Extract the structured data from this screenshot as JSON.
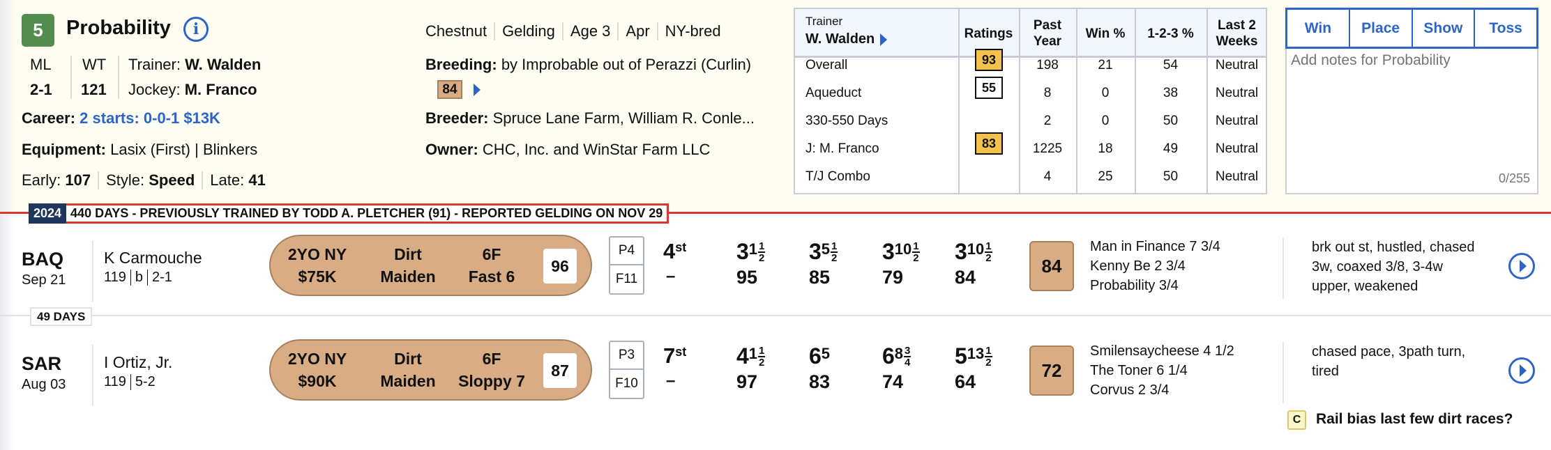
{
  "horse": {
    "number": "5",
    "name": "Probability",
    "ml_label": "ML",
    "ml": "2-1",
    "wt_label": "WT",
    "wt": "121",
    "trainer_label": "Trainer:",
    "trainer": "W. Walden",
    "jockey_label": "Jockey:",
    "jockey": "M. Franco",
    "career_label": "Career:",
    "career": "2 starts: 0-0-1 $13K",
    "equipment_label": "Equipment:",
    "equipment": "Lasix (First) | Blinkers",
    "early_label": "Early:",
    "early": "107",
    "style_label": "Style:",
    "style": "Speed",
    "late_label": "Late:",
    "late": "41",
    "attributes": [
      "Chestnut",
      "Gelding",
      "Age 3",
      "Apr",
      "NY-bred"
    ],
    "breeding_label": "Breeding:",
    "breeding": "by Improbable out of Perazzi (Curlin)",
    "breeding_rating": "84",
    "breeder_label": "Breeder:",
    "breeder": "Spruce Lane Farm, William R. Conle...",
    "owner_label": "Owner:",
    "owner": "CHC, Inc. and WinStar Farm LLC"
  },
  "stats": {
    "trainer_label": "Trainer",
    "trainer": "W. Walden",
    "headers": [
      "Ratings",
      "Past Year",
      "Win %",
      "1-2-3 %",
      "Last 2 Weeks"
    ],
    "rows": [
      {
        "label": "Overall",
        "rating": "93",
        "rating_style": "gold",
        "past_year": "198",
        "win": "21",
        "itm": "54",
        "last2": "Neutral"
      },
      {
        "label": "Aqueduct",
        "rating": "55",
        "rating_style": "white",
        "past_year": "8",
        "win": "0",
        "itm": "38",
        "last2": "Neutral"
      },
      {
        "label": "330-550 Days",
        "rating": "",
        "past_year": "2",
        "win": "0",
        "itm": "50",
        "last2": "Neutral"
      },
      {
        "label": "J: M. Franco",
        "rating": "83",
        "rating_style": "gold",
        "past_year": "1225",
        "win": "18",
        "itm": "49",
        "last2": "Neutral"
      },
      {
        "label": "T/J Combo",
        "rating": "",
        "past_year": "4",
        "win": "25",
        "itm": "50",
        "last2": "Neutral"
      }
    ]
  },
  "notes": {
    "buttons": [
      "Win",
      "Place",
      "Show",
      "Toss"
    ],
    "placeholder": "Add notes for Probability",
    "counter": "0/255"
  },
  "banner": {
    "year": "2024",
    "message": "440 DAYS - PREVIOUSLY TRAINED BY TODD A. PLETCHER (91) - REPORTED GELDING ON NOV 29"
  },
  "gap_label": "49 DAYS",
  "races": [
    {
      "track": "BAQ",
      "date": "Sep 21",
      "jockey": "K Carmouche",
      "meta": [
        "119",
        "b",
        "2-1"
      ],
      "race_class": [
        "2YO NY",
        "$75K"
      ],
      "surface": [
        "Dirt",
        "Maiden"
      ],
      "distance": [
        "6F",
        "Fast 6"
      ],
      "race_rating": "96",
      "post": "P4",
      "field": "F11",
      "finish": "4",
      "finish_suffix": "st",
      "finish_below": "–",
      "calls": [
        {
          "pos": "3",
          "len": "1",
          "num": "1",
          "den": "2",
          "fig": "95"
        },
        {
          "pos": "3",
          "len": "5",
          "num": "1",
          "den": "2",
          "fig": "85"
        },
        {
          "pos": "3",
          "len": "10",
          "num": "1",
          "den": "2",
          "fig": "79"
        },
        {
          "pos": "3",
          "len": "10",
          "num": "1",
          "den": "2",
          "fig": "84"
        }
      ],
      "speed_figure": "84",
      "finishers": [
        "Man in Finance  7 3/4",
        "Kenny Be  2 3/4",
        "Probability  3/4"
      ],
      "comment": [
        "brk out st, hustled, chased",
        "3w, coaxed 3/8, 3-4w",
        "upper, weakened"
      ]
    },
    {
      "track": "SAR",
      "date": "Aug 03",
      "jockey": "I Ortiz, Jr.",
      "meta": [
        "119",
        "5-2"
      ],
      "race_class": [
        "2YO NY",
        "$90K"
      ],
      "surface": [
        "Dirt",
        "Maiden"
      ],
      "distance": [
        "6F",
        "Sloppy 7"
      ],
      "race_rating": "87",
      "post": "P3",
      "field": "F10",
      "finish": "7",
      "finish_suffix": "st",
      "finish_below": "–",
      "calls": [
        {
          "pos": "4",
          "len": "1",
          "num": "1",
          "den": "2",
          "fig": "97"
        },
        {
          "pos": "6",
          "len": "5",
          "num": "",
          "den": "",
          "fig": "83"
        },
        {
          "pos": "6",
          "len": "8",
          "num": "3",
          "den": "4",
          "fig": "74"
        },
        {
          "pos": "5",
          "len": "13",
          "num": "1",
          "den": "2",
          "fig": "64"
        }
      ],
      "speed_figure": "72",
      "finishers": [
        "Smilensaycheese  4 1/2",
        "The Toner  6 1/4",
        "Corvus  2 3/4"
      ],
      "comment": [
        "chased pace, 3path turn,",
        "tired"
      ]
    }
  ],
  "comment_note": {
    "badge": "C",
    "text": "Rail bias last few dirt races?"
  },
  "colors": {
    "accent": "#2d64c8",
    "badge_green": "#548b4f",
    "pill_tan": "#d8ad85",
    "rating_gold": "#f2c14e",
    "banner_red": "#d8392f",
    "banner_navy": "#1f365c"
  }
}
